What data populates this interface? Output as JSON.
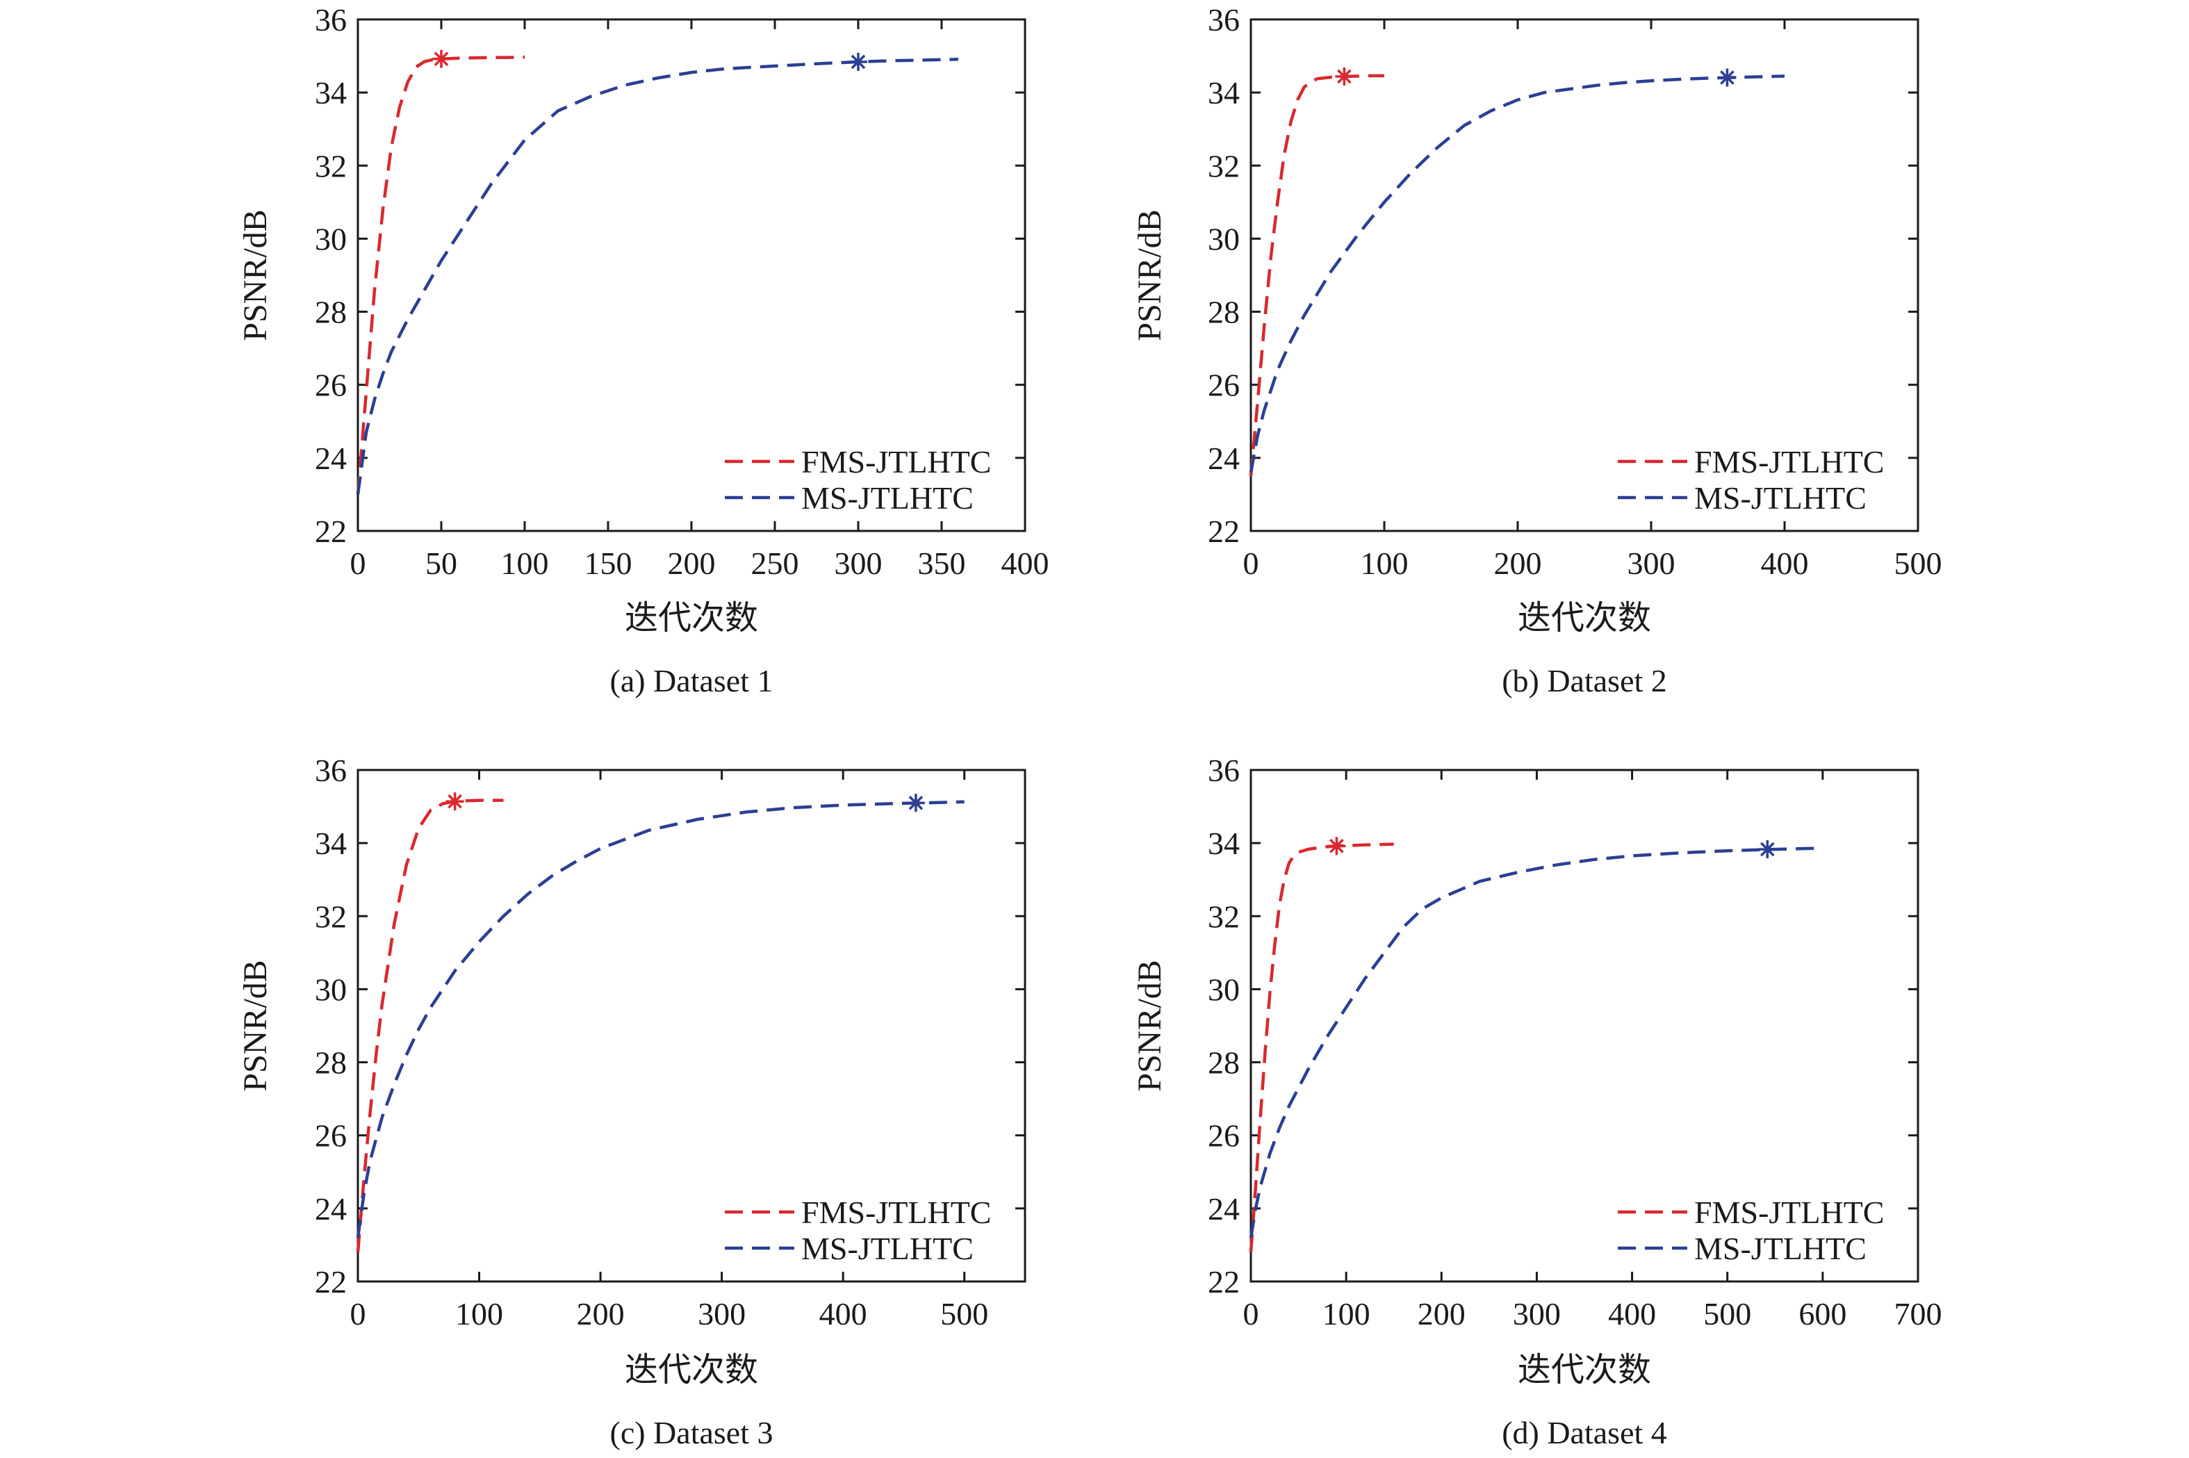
{
  "colors": {
    "fms": "#d9282e",
    "ms": "#2b3f94",
    "axis": "#1a1a1a"
  },
  "chart_data": [
    {
      "type": "line",
      "caption": "(a) Dataset 1",
      "xlabel": "迭代次数",
      "ylabel": "PSNR/dB",
      "xlim": [
        0,
        400
      ],
      "ylim": [
        22,
        36
      ],
      "xticks": [
        0,
        50,
        100,
        150,
        200,
        250,
        300,
        350,
        400
      ],
      "yticks": [
        22,
        24,
        26,
        28,
        30,
        32,
        34,
        36
      ],
      "legend_position": "bottom-right",
      "series": [
        {
          "name": "FMS-JTLHTC",
          "color": "#d9282e",
          "x": [
            0,
            5,
            10,
            15,
            20,
            25,
            30,
            35,
            40,
            45,
            50,
            60,
            70,
            80,
            90,
            100
          ],
          "y": [
            23.0,
            25.8,
            28.6,
            30.8,
            32.5,
            33.6,
            34.3,
            34.7,
            34.85,
            34.9,
            34.92,
            34.94,
            34.95,
            34.96,
            34.96,
            34.97
          ],
          "marker": {
            "x": 50,
            "y": 34.92
          }
        },
        {
          "name": "MS-JTLHTC",
          "color": "#2b3f94",
          "x": [
            0,
            5,
            10,
            15,
            20,
            30,
            40,
            50,
            60,
            70,
            80,
            90,
            100,
            120,
            140,
            160,
            180,
            200,
            220,
            240,
            260,
            280,
            300,
            320,
            340,
            360
          ],
          "y": [
            23.0,
            24.7,
            25.6,
            26.3,
            26.9,
            27.8,
            28.6,
            29.4,
            30.1,
            30.8,
            31.5,
            32.1,
            32.7,
            33.5,
            33.9,
            34.2,
            34.4,
            34.55,
            34.65,
            34.7,
            34.75,
            34.8,
            34.84,
            34.87,
            34.89,
            34.91
          ],
          "marker": {
            "x": 300,
            "y": 34.84
          }
        }
      ]
    },
    {
      "type": "line",
      "caption": "(b) Dataset 2",
      "xlabel": "迭代次数",
      "ylabel": "PSNR/dB",
      "xlim": [
        0,
        500
      ],
      "ylim": [
        22,
        36
      ],
      "xticks": [
        0,
        100,
        200,
        300,
        400,
        500
      ],
      "yticks": [
        22,
        24,
        26,
        28,
        30,
        32,
        34,
        36
      ],
      "legend_position": "bottom-right",
      "series": [
        {
          "name": "FMS-JTLHTC",
          "color": "#d9282e",
          "x": [
            0,
            5,
            10,
            15,
            20,
            25,
            30,
            35,
            40,
            45,
            50,
            60,
            70,
            80,
            90,
            100
          ],
          "y": [
            23.5,
            25.5,
            27.6,
            29.5,
            31.0,
            32.3,
            33.2,
            33.8,
            34.15,
            34.3,
            34.38,
            34.42,
            34.44,
            34.45,
            34.46,
            34.46
          ],
          "marker": {
            "x": 70,
            "y": 34.44
          }
        },
        {
          "name": "MS-JTLHTC",
          "color": "#2b3f94",
          "x": [
            0,
            5,
            10,
            20,
            30,
            40,
            50,
            60,
            80,
            100,
            120,
            140,
            160,
            180,
            200,
            220,
            240,
            260,
            280,
            300,
            320,
            340,
            360,
            380,
            400
          ],
          "y": [
            23.6,
            24.6,
            25.3,
            26.4,
            27.2,
            27.9,
            28.5,
            29.1,
            30.1,
            31.0,
            31.8,
            32.5,
            33.1,
            33.5,
            33.8,
            34.0,
            34.1,
            34.2,
            34.27,
            34.32,
            34.36,
            34.39,
            34.41,
            34.43,
            34.45
          ],
          "marker": {
            "x": 357,
            "y": 34.41
          }
        }
      ]
    },
    {
      "type": "line",
      "caption": "(c) Dataset 3",
      "xlabel": "迭代次数",
      "ylabel": "PSNR/dB",
      "xlim": [
        0,
        550
      ],
      "ylim": [
        22,
        36
      ],
      "xticks": [
        0,
        100,
        200,
        300,
        400,
        500
      ],
      "yticks": [
        22,
        24,
        26,
        28,
        30,
        32,
        34,
        36
      ],
      "legend_position": "bottom-right",
      "series": [
        {
          "name": "FMS-JTLHTC",
          "color": "#d9282e",
          "x": [
            0,
            5,
            10,
            15,
            20,
            30,
            40,
            50,
            60,
            70,
            80,
            90,
            100,
            110,
            120
          ],
          "y": [
            22.8,
            24.8,
            26.6,
            28.2,
            29.6,
            31.8,
            33.4,
            34.4,
            34.9,
            35.08,
            35.14,
            35.16,
            35.17,
            35.17,
            35.17
          ],
          "marker": {
            "x": 80,
            "y": 35.14
          }
        },
        {
          "name": "MS-JTLHTC",
          "color": "#2b3f94",
          "x": [
            0,
            5,
            10,
            20,
            30,
            40,
            50,
            60,
            80,
            100,
            120,
            140,
            160,
            180,
            200,
            240,
            280,
            320,
            360,
            400,
            440,
            480,
            500
          ],
          "y": [
            23.2,
            24.4,
            25.3,
            26.5,
            27.4,
            28.2,
            28.9,
            29.5,
            30.5,
            31.3,
            32.0,
            32.6,
            33.1,
            33.5,
            33.85,
            34.35,
            34.65,
            34.85,
            34.97,
            35.04,
            35.08,
            35.11,
            35.13
          ],
          "marker": {
            "x": 460,
            "y": 35.1
          }
        }
      ]
    },
    {
      "type": "line",
      "caption": "(d) Dataset 4",
      "xlabel": "迭代次数",
      "ylabel": "PSNR/dB",
      "xlim": [
        0,
        700
      ],
      "ylim": [
        22,
        36
      ],
      "xticks": [
        0,
        100,
        200,
        300,
        400,
        500,
        600,
        700
      ],
      "yticks": [
        22,
        24,
        26,
        28,
        30,
        32,
        34,
        36
      ],
      "legend_position": "bottom-right",
      "series": [
        {
          "name": "FMS-JTLHTC",
          "color": "#d9282e",
          "x": [
            0,
            5,
            10,
            15,
            20,
            25,
            30,
            35,
            40,
            45,
            50,
            60,
            70,
            80,
            90,
            100,
            120,
            150
          ],
          "y": [
            22.8,
            24.6,
            26.5,
            28.3,
            29.9,
            31.2,
            32.3,
            33.0,
            33.45,
            33.65,
            33.75,
            33.83,
            33.87,
            33.9,
            33.92,
            33.93,
            33.95,
            33.97
          ],
          "marker": {
            "x": 90,
            "y": 33.92
          }
        },
        {
          "name": "MS-JTLHTC",
          "color": "#2b3f94",
          "x": [
            0,
            5,
            10,
            20,
            30,
            40,
            50,
            60,
            80,
            100,
            120,
            140,
            160,
            180,
            200,
            240,
            280,
            320,
            360,
            400,
            450,
            500,
            550,
            600
          ],
          "y": [
            23.2,
            24.0,
            24.6,
            25.5,
            26.2,
            26.8,
            27.3,
            27.8,
            28.7,
            29.5,
            30.3,
            31.0,
            31.7,
            32.2,
            32.5,
            32.95,
            33.2,
            33.4,
            33.55,
            33.65,
            33.73,
            33.79,
            33.83,
            33.86
          ],
          "marker": {
            "x": 542,
            "y": 33.83
          }
        }
      ]
    }
  ]
}
